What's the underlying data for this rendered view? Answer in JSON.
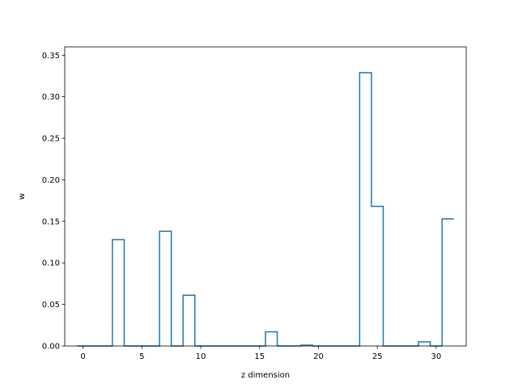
{
  "chart_data": {
    "type": "bar",
    "style": "step-histogram",
    "title": "",
    "xlabel": "z dimension",
    "ylabel": "w",
    "xlim": [
      -1.55,
      32.55
    ],
    "ylim": [
      0,
      0.36
    ],
    "grid": false,
    "color": "#1f77b4",
    "x": [
      0,
      1,
      2,
      3,
      4,
      5,
      6,
      7,
      8,
      9,
      10,
      11,
      12,
      13,
      14,
      15,
      16,
      17,
      18,
      19,
      20,
      21,
      22,
      23,
      24,
      25,
      26,
      27,
      28,
      29,
      30,
      31
    ],
    "values": [
      0,
      0,
      0,
      0.128,
      0,
      0,
      0,
      0.138,
      0,
      0.061,
      0,
      0,
      0,
      0,
      0,
      0,
      0.017,
      0,
      0,
      0.001,
      0,
      0,
      0,
      0,
      0.329,
      0.168,
      0,
      0,
      0,
      0.005,
      0,
      0.153
    ],
    "xticks": [
      0,
      5,
      10,
      15,
      20,
      25,
      30
    ],
    "yticks": [
      0.0,
      0.05,
      0.1,
      0.15,
      0.2,
      0.25,
      0.3,
      0.35
    ],
    "xtick_labels": [
      "0",
      "5",
      "10",
      "15",
      "20",
      "25",
      "30"
    ],
    "ytick_labels": [
      "0.00",
      "0.05",
      "0.10",
      "0.15",
      "0.20",
      "0.25",
      "0.30",
      "0.35"
    ]
  }
}
